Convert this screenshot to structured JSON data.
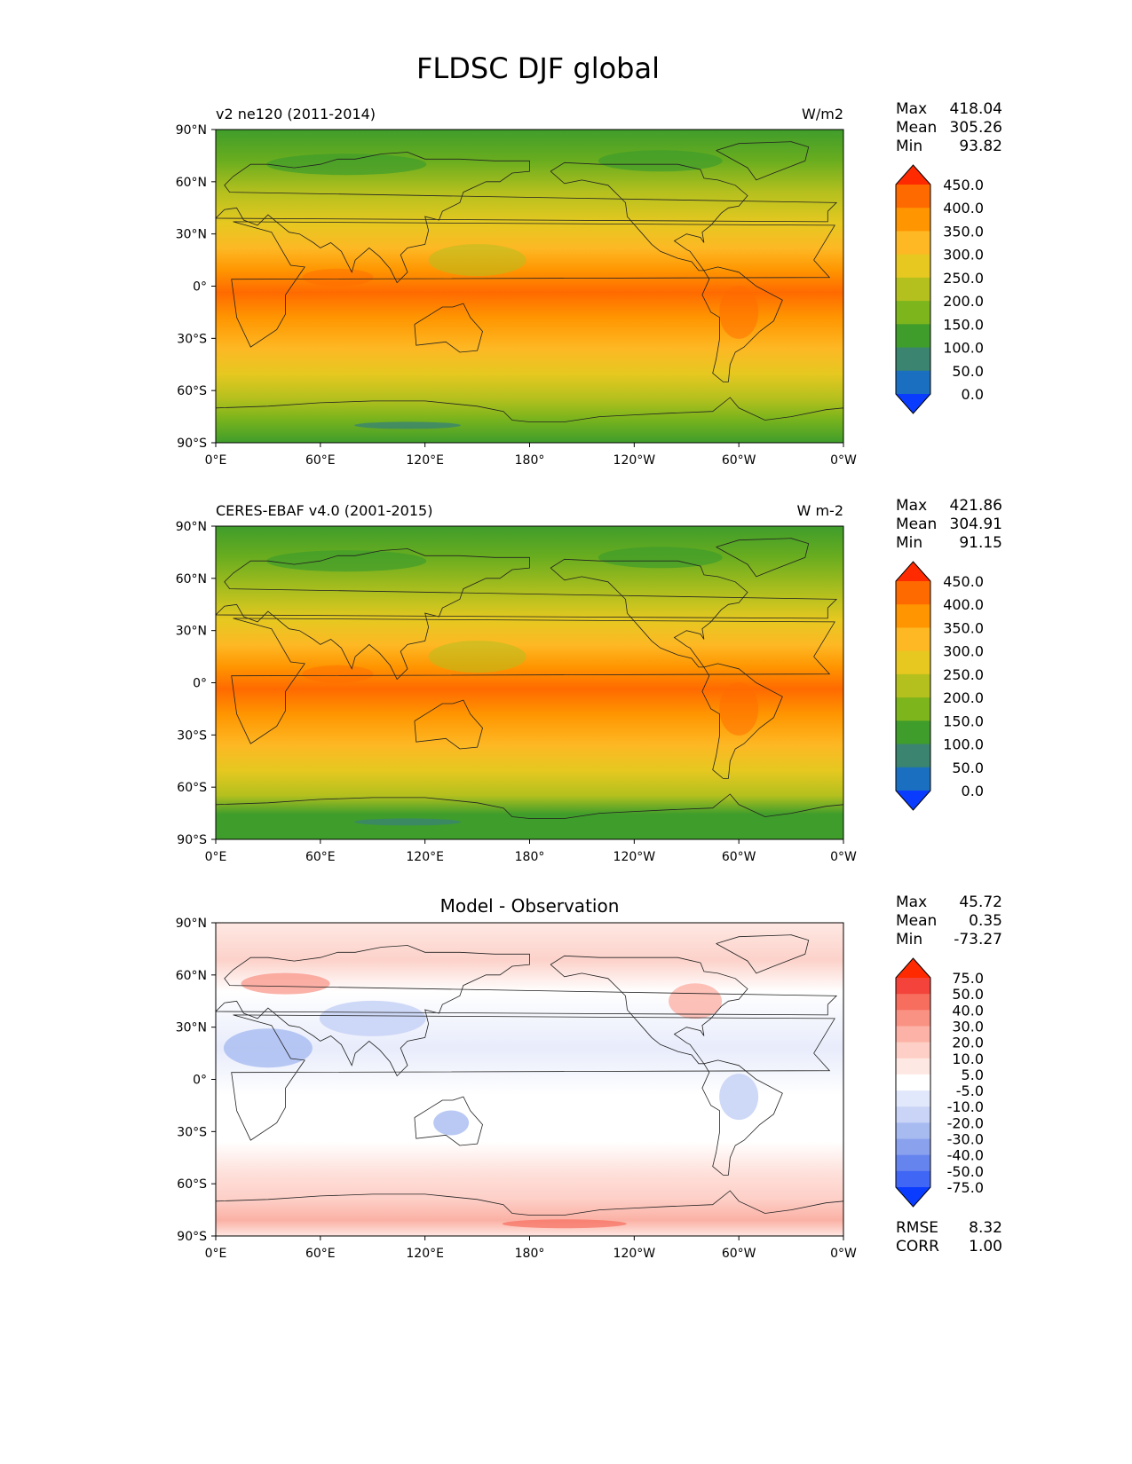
{
  "title": "FLDSC DJF global",
  "lon_ticks": [
    "0°E",
    "60°E",
    "120°E",
    "180°",
    "120°W",
    "60°W",
    "0°W"
  ],
  "lat_ticks": [
    "90°N",
    "60°N",
    "30°N",
    "0°",
    "30°S",
    "60°S",
    "90°S"
  ],
  "panels": [
    {
      "id": "model",
      "title_left": "v2 ne120 (2011-2014)",
      "title_center": "",
      "units": "W/m2",
      "stats": [
        {
          "label": "Max",
          "value": "418.04"
        },
        {
          "label": "Mean",
          "value": "305.26"
        },
        {
          "label": "Min",
          "value": "93.82"
        }
      ],
      "colorbar": {
        "labels": [
          "450.0",
          "400.0",
          "350.0",
          "300.0",
          "250.0",
          "200.0",
          "150.0",
          "100.0",
          "50.0",
          "0.0"
        ],
        "colors": [
          "#ff2a00",
          "#ff6a00",
          "#ff9500",
          "#fdb824",
          "#e6c820",
          "#b4c01e",
          "#7db51c",
          "#3f9d2b",
          "#3a8470",
          "#1a6fc0",
          "#0a3cff"
        ]
      }
    },
    {
      "id": "obs",
      "title_left": "CERES-EBAF v4.0 (2001-2015)",
      "title_center": "",
      "units": "W m-2",
      "stats": [
        {
          "label": "Max",
          "value": "421.86"
        },
        {
          "label": "Mean",
          "value": "304.91"
        },
        {
          "label": "Min",
          "value": "91.15"
        }
      ],
      "colorbar": {
        "labels": [
          "450.0",
          "400.0",
          "350.0",
          "300.0",
          "250.0",
          "200.0",
          "150.0",
          "100.0",
          "50.0",
          "0.0"
        ],
        "colors": [
          "#ff2a00",
          "#ff6a00",
          "#ff9500",
          "#fdb824",
          "#e6c820",
          "#b4c01e",
          "#7db51c",
          "#3f9d2b",
          "#3a8470",
          "#1a6fc0",
          "#0a3cff"
        ]
      }
    },
    {
      "id": "diff",
      "title_left": "",
      "title_center": "Model - Observation",
      "units": "",
      "stats": [
        {
          "label": "Max",
          "value": "45.72"
        },
        {
          "label": "Mean",
          "value": "0.35"
        },
        {
          "label": "Min",
          "value": "-73.27"
        }
      ],
      "extra_stats": [
        {
          "label": "RMSE",
          "value": "8.32"
        },
        {
          "label": "CORR",
          "value": "1.00"
        }
      ],
      "colorbar": {
        "labels": [
          "75.0",
          "50.0",
          "40.0",
          "30.0",
          "20.0",
          "10.0",
          "5.0",
          "-5.0",
          "-10.0",
          "-20.0",
          "-30.0",
          "-40.0",
          "-50.0",
          "-75.0"
        ],
        "colors": [
          "#ff2a00",
          "#f4433a",
          "#f76e5e",
          "#fa9283",
          "#fcb2a6",
          "#fdcfc6",
          "#fee8e3",
          "#ffffff",
          "#e2e8fb",
          "#c9d4f6",
          "#a8bbf1",
          "#8aa2ee",
          "#6684ee",
          "#3f66f4",
          "#0a3cff"
        ]
      }
    }
  ]
}
